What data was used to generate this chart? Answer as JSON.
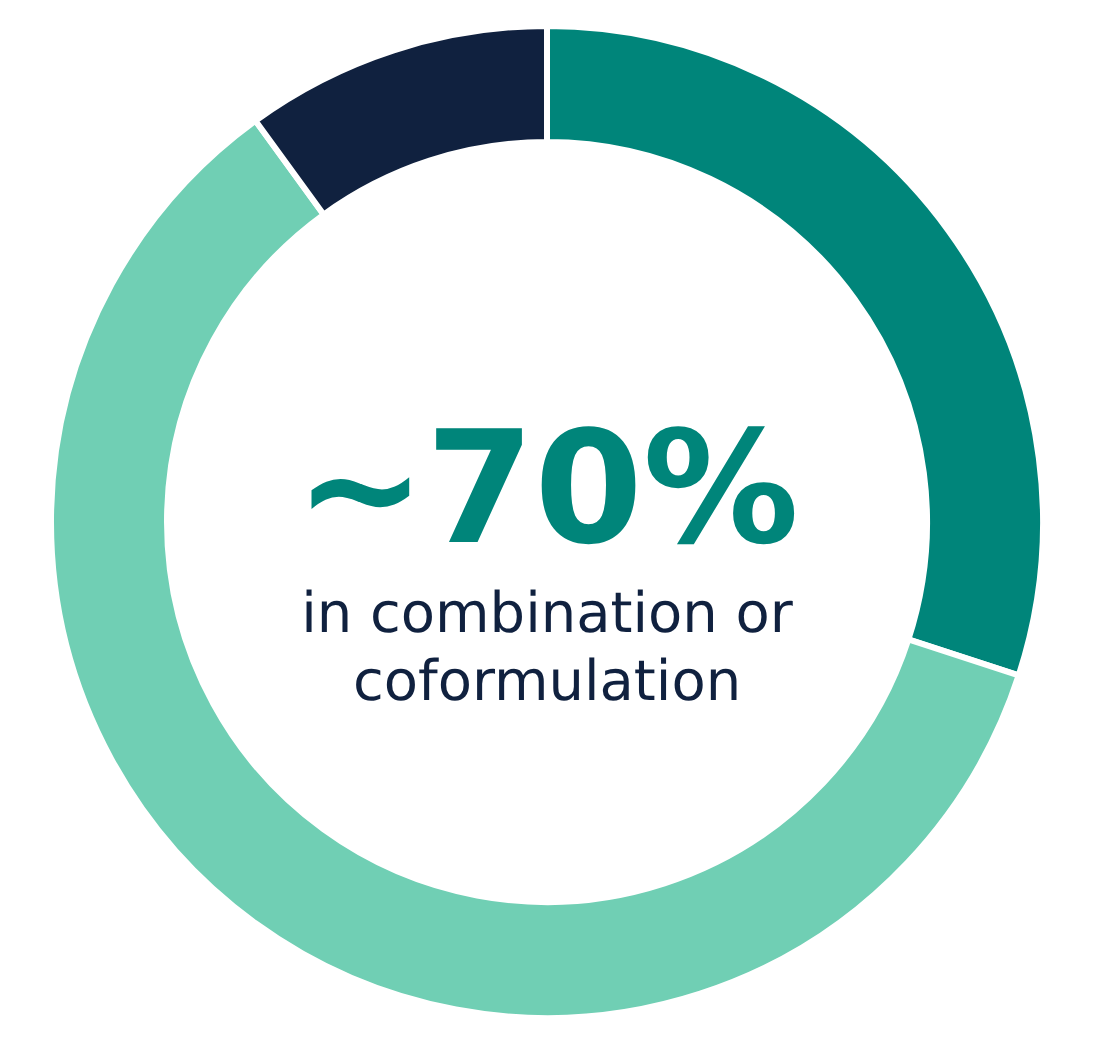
{
  "chart_data": {
    "type": "donut",
    "title": "~70%",
    "subtitle": "in combination or coformulation",
    "categories": [
      null,
      null,
      null
    ],
    "values": [
      30,
      60,
      10
    ],
    "colors": [
      "#00857a",
      "#70cfb4",
      "#10213f"
    ]
  }
}
